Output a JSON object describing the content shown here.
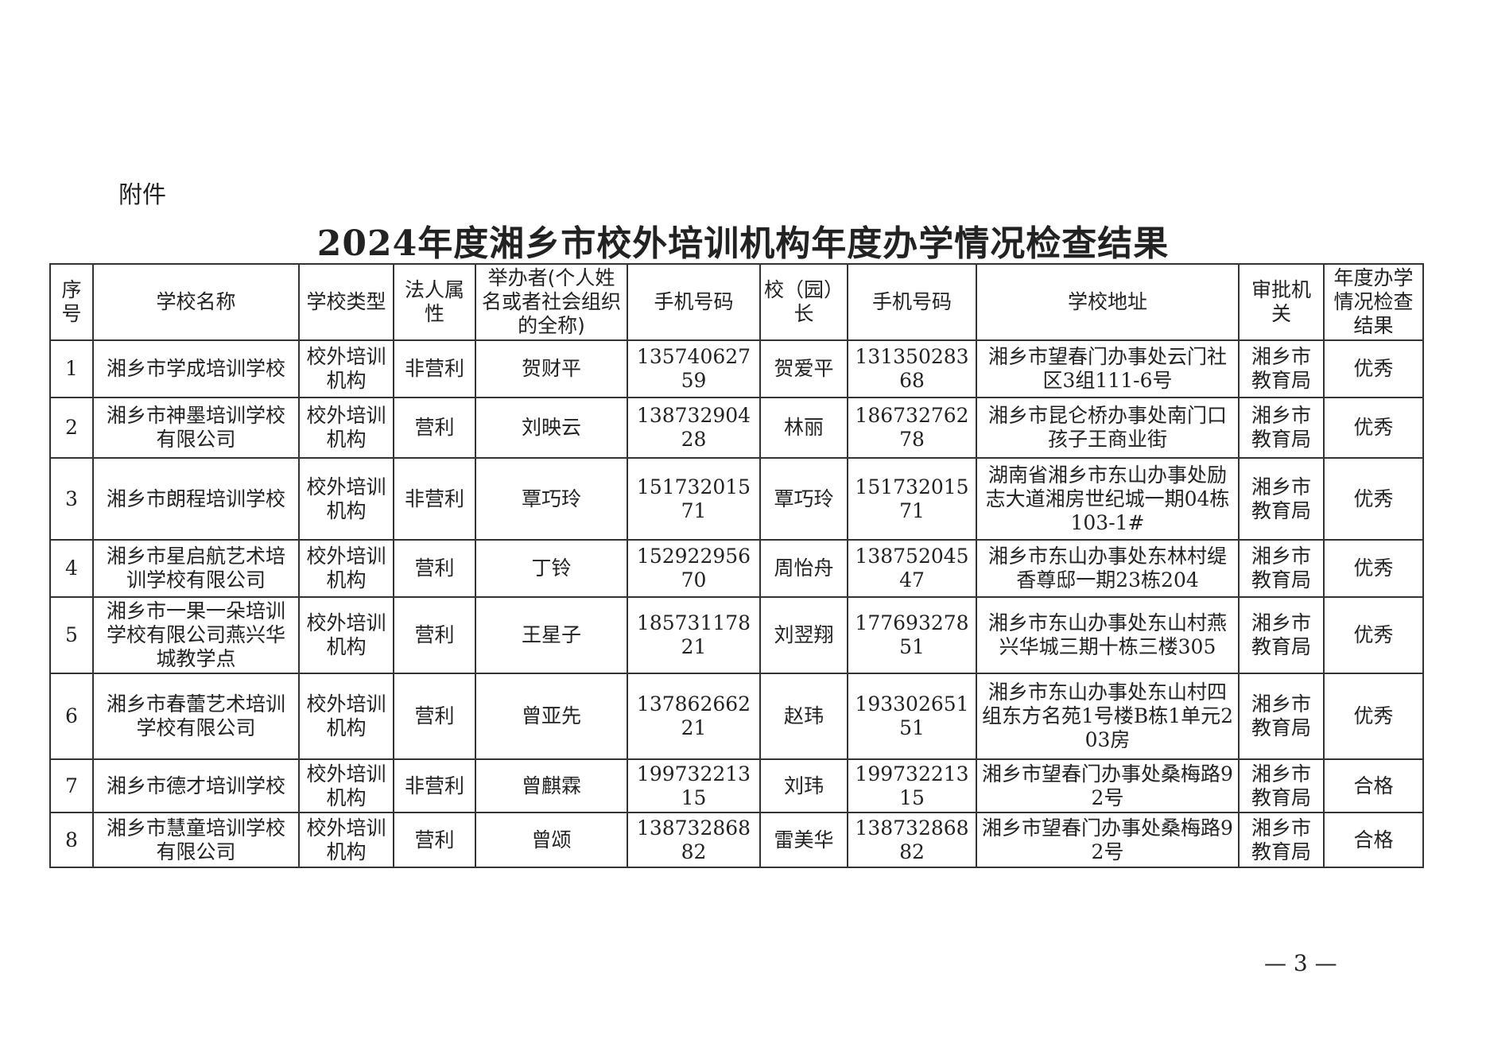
{
  "attachment_label": "附件",
  "title": "2024年度湘乡市校外培训机构年度办学情况检查结果",
  "table": {
    "headers": [
      "序号",
      "学校名称",
      "学校类型",
      "法人属性",
      "举办者(个人姓名或者社会组织的全称)",
      "手机号码",
      "校（园）长",
      "手机号码",
      "学校地址",
      "审批机关",
      "年度办学情况检查结果"
    ],
    "rows": [
      [
        "1",
        "湘乡市学成培训学校",
        "校外培训机构",
        "非营利",
        "贺财平",
        "13574062759",
        "贺爱平",
        "13135028368",
        "湘乡市望春门办事处云门社区3组111-6号",
        "湘乡市教育局",
        "优秀"
      ],
      [
        "2",
        "湘乡市神墨培训学校有限公司",
        "校外培训机构",
        "营利",
        "刘映云",
        "13873290428",
        "林丽",
        "18673276278",
        "湘乡市昆仑桥办事处南门口孩子王商业街",
        "湘乡市教育局",
        "优秀"
      ],
      [
        "3",
        "湘乡市朗程培训学校",
        "校外培训机构",
        "非营利",
        "覃巧玲",
        "15173201571",
        "覃巧玲",
        "15173201571",
        "湖南省湘乡市东山办事处励志大道湘房世纪城一期04栋103-1#",
        "湘乡市教育局",
        "优秀"
      ],
      [
        "4",
        "湘乡市星启航艺术培训学校有限公司",
        "校外培训机构",
        "营利",
        "丁铃",
        "15292295670",
        "周怡舟",
        "13875204547",
        "湘乡市东山办事处东林村缇香尊邸一期23栋204",
        "湘乡市教育局",
        "优秀"
      ],
      [
        "5",
        "湘乡市一果一朵培训学校有限公司燕兴华城教学点",
        "校外培训机构",
        "营利",
        "王星子",
        "18573117821",
        "刘翌翔",
        "17769327851",
        "湘乡市东山办事处东山村燕兴华城三期十栋三楼305",
        "湘乡市教育局",
        "优秀"
      ],
      [
        "6",
        "湘乡市春蕾艺术培训学校有限公司",
        "校外培训机构",
        "营利",
        "曾亚先",
        "13786266221",
        "赵玮",
        "19330265151",
        "湘乡市东山办事处东山村四组东方名苑1号楼B栋1单元203房",
        "湘乡市教育局",
        "优秀"
      ],
      [
        "7",
        "湘乡市德才培训学校",
        "校外培训机构",
        "非营利",
        "曾麒霖",
        "19973221315",
        "刘玮",
        "19973221315",
        "湘乡市望春门办事处桑梅路92号",
        "湘乡市教育局",
        "合格"
      ],
      [
        "8",
        "湘乡市慧童培训学校有限公司",
        "校外培训机构",
        "营利",
        "曾颂",
        "13873286882",
        "雷美华",
        "13873286882",
        "湘乡市望春门办事处桑梅路92号",
        "湘乡市教育局",
        "合格"
      ]
    ]
  },
  "page_number": "— 3 —"
}
